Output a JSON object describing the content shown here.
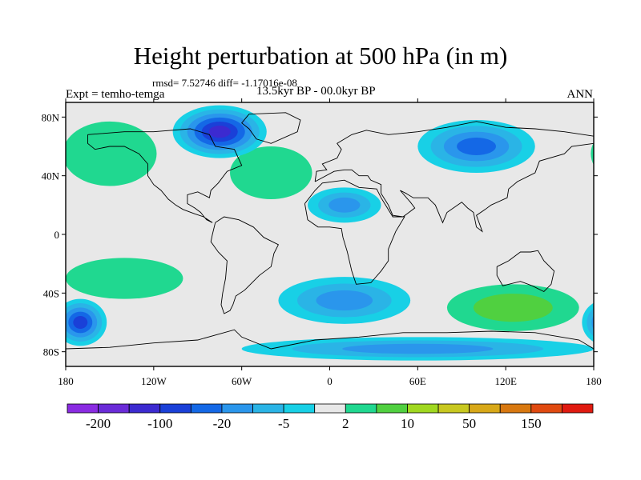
{
  "title": "Height perturbation at 500 hPa (in m)",
  "stats": "rmsd= 7.52746 diff= -1.17016e-08",
  "expt": "Expt = temho-temga",
  "period": "13.5kyr BP - 00.0kyr BP",
  "season": "ANN",
  "map": {
    "lon_range": [
      -180,
      180
    ],
    "lat_range": [
      -90,
      90
    ],
    "lon_ticks": [
      {
        "lon": -180,
        "label": "180"
      },
      {
        "lon": -120,
        "label": "120W"
      },
      {
        "lon": -60,
        "label": "60W"
      },
      {
        "lon": 0,
        "label": "0"
      },
      {
        "lon": 60,
        "label": "60E"
      },
      {
        "lon": 120,
        "label": "120E"
      },
      {
        "lon": 180,
        "label": "180"
      }
    ],
    "lat_ticks": [
      {
        "lat": 80,
        "label": "80N"
      },
      {
        "lat": 40,
        "label": "40N"
      },
      {
        "lat": 0,
        "label": "0"
      },
      {
        "lat": -40,
        "label": "40S"
      },
      {
        "lat": -80,
        "label": "80S"
      }
    ],
    "background_color": "#e8e8e8",
    "features": [
      {
        "name": "n-pacific-high",
        "lon": -150,
        "lat": 55,
        "rlon": 32,
        "rlat": 22,
        "level": 9
      },
      {
        "name": "n-atlantic-ridge",
        "lon": -40,
        "lat": 42,
        "rlon": 28,
        "rlat": 18,
        "level": 9
      },
      {
        "name": "n-america-low",
        "lon": -75,
        "lat": 70,
        "rlon": 32,
        "rlat": 18,
        "level": 2
      },
      {
        "name": "eurasia-high",
        "lon": 25,
        "lat": 52,
        "rlon": 30,
        "rlat": 12,
        "level": 8
      },
      {
        "name": "siberia-low",
        "lon": 100,
        "lat": 60,
        "rlon": 40,
        "rlat": 18,
        "level": 4
      },
      {
        "name": "n-africa-low",
        "lon": 10,
        "lat": 20,
        "rlon": 25,
        "rlat": 12,
        "level": 5
      },
      {
        "name": "se-asia-high",
        "lon": 105,
        "lat": 15,
        "rlon": 20,
        "rlat": 10,
        "level": 8
      },
      {
        "name": "s-pacific-high",
        "lon": -140,
        "lat": -30,
        "rlon": 40,
        "rlat": 14,
        "level": 9
      },
      {
        "name": "sw-pacific-low",
        "lon": -170,
        "lat": -60,
        "rlon": 18,
        "rlat": 16,
        "level": 3
      },
      {
        "name": "s-atlantic-low",
        "lon": 10,
        "lat": -45,
        "rlon": 45,
        "rlat": 16,
        "level": 5
      },
      {
        "name": "indian-ocean-high",
        "lon": 125,
        "lat": -50,
        "rlon": 45,
        "rlat": 16,
        "level": 10
      },
      {
        "name": "antarctic-low",
        "lon": 60,
        "lat": -78,
        "rlon": 120,
        "rlat": 8,
        "level": 5
      }
    ]
  },
  "colorbar": {
    "colors": [
      "#8a2be2",
      "#6a2bd8",
      "#3c2ad0",
      "#1a40d8",
      "#1468e6",
      "#2a96ec",
      "#2ab4e6",
      "#18d0e6",
      "#e8e8e8",
      "#20d890",
      "#50d040",
      "#a0d820",
      "#c8c820",
      "#d8a818",
      "#d87810",
      "#e04a10",
      "#e01a10"
    ],
    "labels": [
      {
        "value": "-200",
        "index": 1
      },
      {
        "value": "-100",
        "index": 3
      },
      {
        "value": "-20",
        "index": 5
      },
      {
        "value": "-5",
        "index": 7
      },
      {
        "value": "2",
        "index": 9
      },
      {
        "value": "10",
        "index": 11
      },
      {
        "value": "50",
        "index": 13
      },
      {
        "value": "150",
        "index": 15
      }
    ]
  }
}
